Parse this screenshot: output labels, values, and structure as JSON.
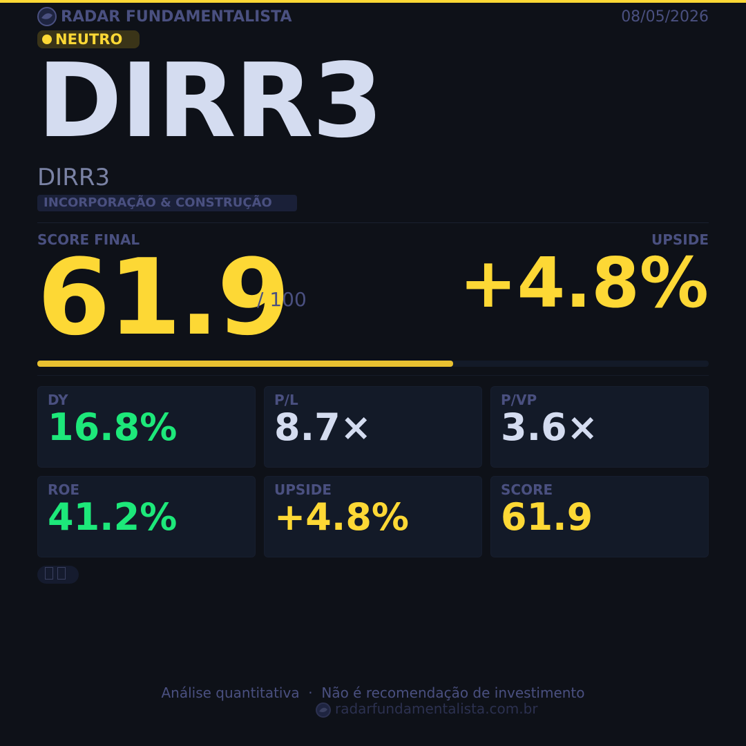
{
  "header": {
    "brand": "RADAR FUNDAMENTALISTA",
    "date": "08/05/2026"
  },
  "badge": "NEUTRO",
  "ticker": "DIRR3",
  "name": "DIRR3",
  "sector": "INCORPORAÇÃO & CONSTRUÇÃO",
  "score": {
    "label": "SCORE FINAL",
    "value": 61.9,
    "scale": {
      "value": 100,
      "label": "/ 100"
    }
  },
  "upside": {
    "label": "UPSIDE",
    "value": "+4.8%"
  },
  "cards": [
    {
      "label": "DY",
      "value": "16.8%",
      "color": "#1de87a"
    },
    {
      "label": "P/L",
      "value": "8.7×",
      "color": "#d4dcf0"
    },
    {
      "label": "P/VP",
      "value": "3.6×",
      "color": "#d4dcf0"
    },
    {
      "label": "ROE",
      "value": "41.2%",
      "color": "#1de87a"
    },
    {
      "label": "UPSIDE",
      "value": "+4.8%",
      "color": "#fdd835"
    },
    {
      "label": "SCORE",
      "value": "61.9",
      "color": "#fdd835"
    }
  ],
  "footer": {
    "disclaimer": "Análise quantitativa  ·  Não é recomendação de investimento",
    "site": "radarfundamentalista.com.br"
  }
}
